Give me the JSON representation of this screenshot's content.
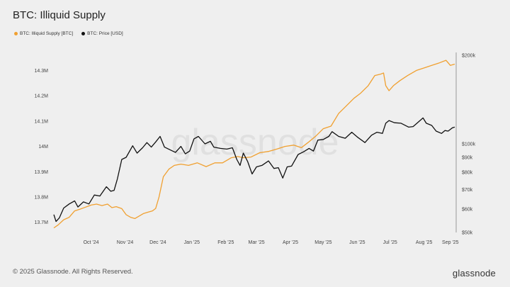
{
  "chart_data": {
    "type": "line",
    "title": "BTC: Illiquid Supply",
    "watermark": "glassnode",
    "legend": [
      {
        "label": "BTC: Illiquid Supply [BTC]",
        "color": "#f0a030"
      },
      {
        "label": "BTC: Price [USD]",
        "color": "#111111"
      }
    ],
    "x_ticks": [
      "Oct '24",
      "Nov '24",
      "Dec '24",
      "Jan '25",
      "Feb '25",
      "Mar '25",
      "Apr '25",
      "May '25",
      "Jun '25",
      "Jul '25",
      "Aug '25",
      "Sep '25"
    ],
    "left_axis": {
      "ticks": [
        "13.7M",
        "13.8M",
        "13.9M",
        "14M",
        "14.1M",
        "14.2M",
        "14.3M"
      ],
      "ylim": [
        13.66,
        14.36
      ]
    },
    "right_axis": {
      "scale": "log",
      "ticks": [
        "$50k",
        "$60k",
        "$70k",
        "$80k",
        "$90k",
        "$100k",
        "$200k"
      ],
      "ylim": [
        50000,
        200000
      ]
    },
    "x_range": [
      "2024-09-11",
      "2025-09-12"
    ],
    "series": [
      {
        "name": "BTC: Illiquid Supply [BTC]",
        "axis": "left",
        "color": "#f0a030",
        "points": [
          [
            "2024-09-11",
            13.678
          ],
          [
            "2024-09-15",
            13.69
          ],
          [
            "2024-09-20",
            13.71
          ],
          [
            "2024-09-25",
            13.72
          ],
          [
            "2024-09-30",
            13.745
          ],
          [
            "2024-10-05",
            13.752
          ],
          [
            "2024-10-10",
            13.76
          ],
          [
            "2024-10-15",
            13.768
          ],
          [
            "2024-10-20",
            13.772
          ],
          [
            "2024-10-25",
            13.766
          ],
          [
            "2024-10-30",
            13.772
          ],
          [
            "2024-11-03",
            13.758
          ],
          [
            "2024-11-07",
            13.762
          ],
          [
            "2024-11-12",
            13.754
          ],
          [
            "2024-11-16",
            13.73
          ],
          [
            "2024-11-20",
            13.72
          ],
          [
            "2024-11-24",
            13.715
          ],
          [
            "2024-11-28",
            13.725
          ],
          [
            "2024-12-02",
            13.735
          ],
          [
            "2024-12-06",
            13.74
          ],
          [
            "2024-12-10",
            13.745
          ],
          [
            "2024-12-13",
            13.755
          ],
          [
            "2024-12-16",
            13.8
          ],
          [
            "2024-12-20",
            13.88
          ],
          [
            "2024-12-25",
            13.91
          ],
          [
            "2024-12-30",
            13.925
          ],
          [
            "2025-01-05",
            13.93
          ],
          [
            "2025-01-12",
            13.925
          ],
          [
            "2025-01-20",
            13.935
          ],
          [
            "2025-01-28",
            13.92
          ],
          [
            "2025-02-05",
            13.935
          ],
          [
            "2025-02-12",
            13.935
          ],
          [
            "2025-02-20",
            13.955
          ],
          [
            "2025-02-26",
            13.96
          ],
          [
            "2025-03-03",
            13.955
          ],
          [
            "2025-03-10",
            13.958
          ],
          [
            "2025-03-18",
            13.975
          ],
          [
            "2025-03-26",
            13.98
          ],
          [
            "2025-04-03",
            13.99
          ],
          [
            "2025-04-10",
            14.0
          ],
          [
            "2025-04-18",
            14.005
          ],
          [
            "2025-04-25",
            13.995
          ],
          [
            "2025-05-01",
            14.015
          ],
          [
            "2025-05-08",
            14.04
          ],
          [
            "2025-05-15",
            14.07
          ],
          [
            "2025-05-22",
            14.08
          ],
          [
            "2025-05-29",
            14.13
          ],
          [
            "2025-06-05",
            14.16
          ],
          [
            "2025-06-12",
            14.19
          ],
          [
            "2025-06-18",
            14.21
          ],
          [
            "2025-06-25",
            14.24
          ],
          [
            "2025-07-01",
            14.28
          ],
          [
            "2025-07-06",
            14.285
          ],
          [
            "2025-07-09",
            14.29
          ],
          [
            "2025-07-11",
            14.24
          ],
          [
            "2025-07-14",
            14.22
          ],
          [
            "2025-07-18",
            14.24
          ],
          [
            "2025-07-24",
            14.26
          ],
          [
            "2025-07-31",
            14.28
          ],
          [
            "2025-08-08",
            14.3
          ],
          [
            "2025-08-15",
            14.31
          ],
          [
            "2025-08-22",
            14.32
          ],
          [
            "2025-08-29",
            14.33
          ],
          [
            "2025-09-04",
            14.34
          ],
          [
            "2025-09-08",
            14.32
          ],
          [
            "2025-09-12",
            14.325
          ]
        ]
      },
      {
        "name": "BTC: Price [USD]",
        "axis": "right",
        "color": "#111111",
        "points": [
          [
            "2024-09-11",
            57500
          ],
          [
            "2024-09-13",
            54500
          ],
          [
            "2024-09-16",
            56000
          ],
          [
            "2024-09-20",
            60500
          ],
          [
            "2024-09-25",
            62500
          ],
          [
            "2024-09-30",
            64000
          ],
          [
            "2024-10-03",
            61000
          ],
          [
            "2024-10-08",
            63500
          ],
          [
            "2024-10-13",
            62500
          ],
          [
            "2024-10-18",
            67000
          ],
          [
            "2024-10-23",
            66500
          ],
          [
            "2024-10-29",
            71500
          ],
          [
            "2024-11-02",
            69000
          ],
          [
            "2024-11-05",
            69500
          ],
          [
            "2024-11-08",
            76000
          ],
          [
            "2024-11-12",
            88500
          ],
          [
            "2024-11-16",
            90000
          ],
          [
            "2024-11-22",
            98500
          ],
          [
            "2024-11-26",
            93000
          ],
          [
            "2024-12-01",
            97000
          ],
          [
            "2024-12-05",
            101000
          ],
          [
            "2024-12-09",
            97500
          ],
          [
            "2024-12-13",
            101500
          ],
          [
            "2024-12-17",
            106000
          ],
          [
            "2024-12-21",
            97500
          ],
          [
            "2024-12-26",
            95500
          ],
          [
            "2024-12-31",
            93500
          ],
          [
            "2025-01-05",
            98000
          ],
          [
            "2025-01-09",
            92500
          ],
          [
            "2025-01-13",
            94500
          ],
          [
            "2025-01-17",
            104000
          ],
          [
            "2025-01-21",
            106000
          ],
          [
            "2025-01-27",
            100000
          ],
          [
            "2025-02-01",
            102000
          ],
          [
            "2025-02-04",
            97500
          ],
          [
            "2025-02-10",
            96500
          ],
          [
            "2025-02-16",
            96000
          ],
          [
            "2025-02-21",
            97000
          ],
          [
            "2025-02-25",
            88500
          ],
          [
            "2025-02-28",
            84500
          ],
          [
            "2025-03-03",
            93000
          ],
          [
            "2025-03-07",
            87000
          ],
          [
            "2025-03-11",
            79000
          ],
          [
            "2025-03-15",
            83500
          ],
          [
            "2025-03-20",
            84500
          ],
          [
            "2025-03-26",
            87500
          ],
          [
            "2025-03-31",
            82500
          ],
          [
            "2025-04-04",
            83000
          ],
          [
            "2025-04-08",
            76500
          ],
          [
            "2025-04-12",
            83500
          ],
          [
            "2025-04-16",
            84000
          ],
          [
            "2025-04-22",
            92000
          ],
          [
            "2025-04-27",
            94000
          ],
          [
            "2025-05-02",
            96500
          ],
          [
            "2025-05-06",
            94500
          ],
          [
            "2025-05-10",
            103000
          ],
          [
            "2025-05-15",
            103500
          ],
          [
            "2025-05-20",
            106000
          ],
          [
            "2025-05-23",
            110000
          ],
          [
            "2025-05-29",
            106000
          ],
          [
            "2025-06-04",
            104500
          ],
          [
            "2025-06-10",
            109500
          ],
          [
            "2025-06-15",
            105500
          ],
          [
            "2025-06-22",
            101000
          ],
          [
            "2025-06-28",
            107000
          ],
          [
            "2025-07-03",
            109500
          ],
          [
            "2025-07-08",
            108500
          ],
          [
            "2025-07-11",
            117500
          ],
          [
            "2025-07-14",
            120000
          ],
          [
            "2025-07-19",
            118000
          ],
          [
            "2025-07-25",
            117500
          ],
          [
            "2025-08-01",
            114000
          ],
          [
            "2025-08-05",
            114500
          ],
          [
            "2025-08-09",
            118000
          ],
          [
            "2025-08-14",
            122500
          ],
          [
            "2025-08-17",
            117500
          ],
          [
            "2025-08-22",
            115500
          ],
          [
            "2025-08-26",
            110500
          ],
          [
            "2025-08-31",
            108500
          ],
          [
            "2025-09-03",
            111000
          ],
          [
            "2025-09-06",
            110500
          ],
          [
            "2025-09-10",
            113500
          ],
          [
            "2025-09-12",
            114000
          ]
        ]
      }
    ]
  },
  "footer": {
    "copyright": "© 2025 Glassnode. All Rights Reserved.",
    "brand": "glassnode"
  }
}
